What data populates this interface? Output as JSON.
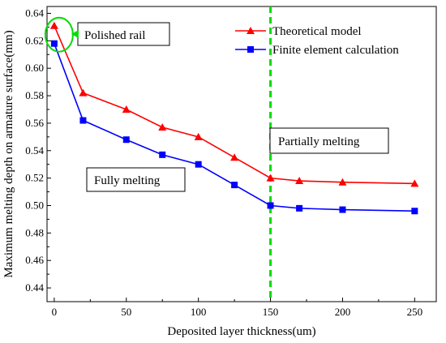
{
  "chart_data": {
    "type": "line",
    "xlabel": "Deposited layer thickness(um)",
    "ylabel": "Maximum melting depth on armature surface(mm)",
    "xlim": [
      -5,
      265
    ],
    "ylim": [
      0.43,
      0.645
    ],
    "xticks": [
      0,
      50,
      100,
      150,
      200,
      250
    ],
    "xtick_labels": [
      "0",
      "50",
      "100",
      "150",
      "200",
      "250"
    ],
    "yticks": [
      0.44,
      0.46,
      0.48,
      0.5,
      0.52,
      0.54,
      0.56,
      0.58,
      0.6,
      0.62,
      0.64
    ],
    "ytick_labels": [
      "0.44",
      "0.46",
      "0.48",
      "0.50",
      "0.52",
      "0.54",
      "0.56",
      "0.58",
      "0.60",
      "0.62",
      "0.64"
    ],
    "grid": false,
    "legend_position": "top-right",
    "x": [
      0,
      20,
      50,
      75,
      100,
      125,
      150,
      170,
      200,
      250
    ],
    "series": [
      {
        "name": "Theoretical model",
        "color": "#ff0000",
        "marker": "triangle",
        "values": [
          0.631,
          0.582,
          0.57,
          0.557,
          0.55,
          0.535,
          0.52,
          0.518,
          0.517,
          0.516
        ]
      },
      {
        "name": "Finite element calculation",
        "color": "#0000ff",
        "marker": "square",
        "values": [
          0.618,
          0.562,
          0.548,
          0.537,
          0.53,
          0.515,
          0.5,
          0.498,
          0.497,
          0.496
        ]
      }
    ],
    "reference_line": {
      "x": 150,
      "color": "#00dd00",
      "style": "dashed"
    },
    "annotations": {
      "polished": "Polished rail",
      "partial": "Partially melting",
      "fully": "Fully melting",
      "highlight_color": "#00dd00"
    }
  }
}
